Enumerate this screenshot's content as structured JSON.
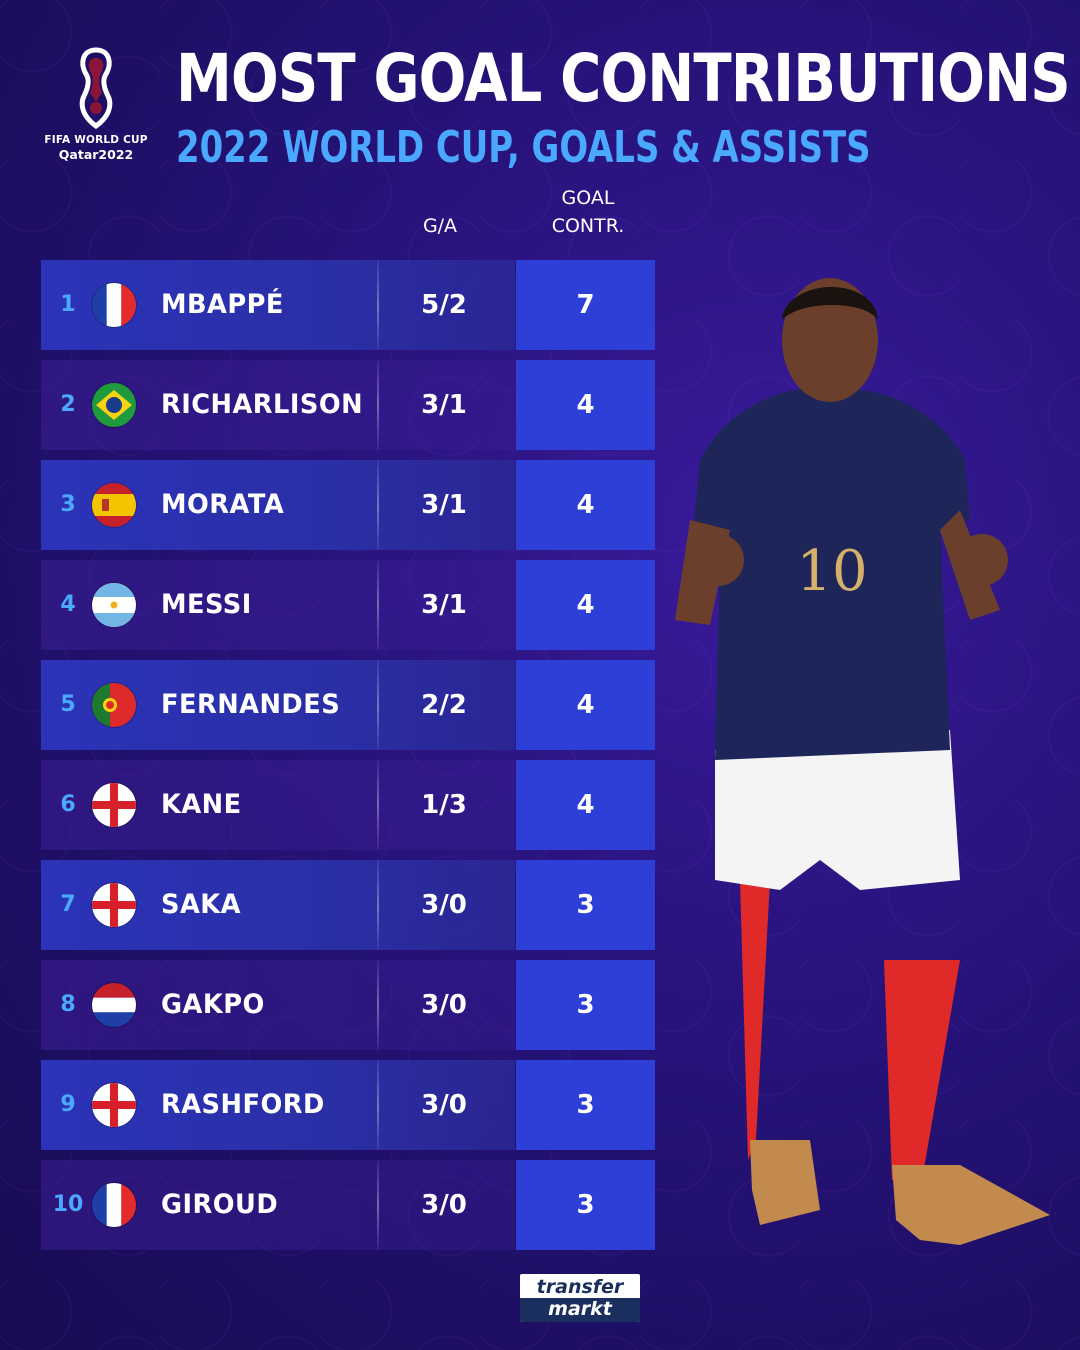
{
  "branding": {
    "event_logo_line1": "FIFA WORLD CUP",
    "event_logo_line2": "Qatar2022",
    "publisher_line1": "transfer",
    "publisher_line2": "markt"
  },
  "header": {
    "title": "MOST GOAL CONTRIBUTIONS",
    "subtitle": "2022 WORLD CUP, GOALS & ASSISTS"
  },
  "columns": {
    "ga_label": "G/A",
    "gc_label_line1": "GOAL",
    "gc_label_line2": "CONTR."
  },
  "colors": {
    "accent_blue": "#4aa8ff",
    "cell_blue": "#2d3fd6",
    "background": "#2a1480"
  },
  "rows": [
    {
      "rank": "1",
      "flag": "france-flag-icon",
      "name": "MBAPPÉ",
      "ga": "5/2",
      "gc": "7"
    },
    {
      "rank": "2",
      "flag": "brazil-flag-icon",
      "name": "RICHARLISON",
      "ga": "3/1",
      "gc": "4"
    },
    {
      "rank": "3",
      "flag": "spain-flag-icon",
      "name": "MORATA",
      "ga": "3/1",
      "gc": "4"
    },
    {
      "rank": "4",
      "flag": "argentina-flag-icon",
      "name": "MESSI",
      "ga": "3/1",
      "gc": "4"
    },
    {
      "rank": "5",
      "flag": "portugal-flag-icon",
      "name": "FERNANDES",
      "ga": "2/2",
      "gc": "4"
    },
    {
      "rank": "6",
      "flag": "england-flag-icon",
      "name": "KANE",
      "ga": "1/3",
      "gc": "4"
    },
    {
      "rank": "7",
      "flag": "england-flag-icon",
      "name": "SAKA",
      "ga": "3/0",
      "gc": "3"
    },
    {
      "rank": "8",
      "flag": "netherlands-flag-icon",
      "name": "GAKPO",
      "ga": "3/0",
      "gc": "3"
    },
    {
      "rank": "9",
      "flag": "england-flag-icon",
      "name": "RASHFORD",
      "ga": "3/0",
      "gc": "3"
    },
    {
      "rank": "10",
      "flag": "france-flag-icon",
      "name": "GIROUD",
      "ga": "3/0",
      "gc": "3"
    }
  ],
  "player_image": {
    "shirt_number": "10"
  }
}
